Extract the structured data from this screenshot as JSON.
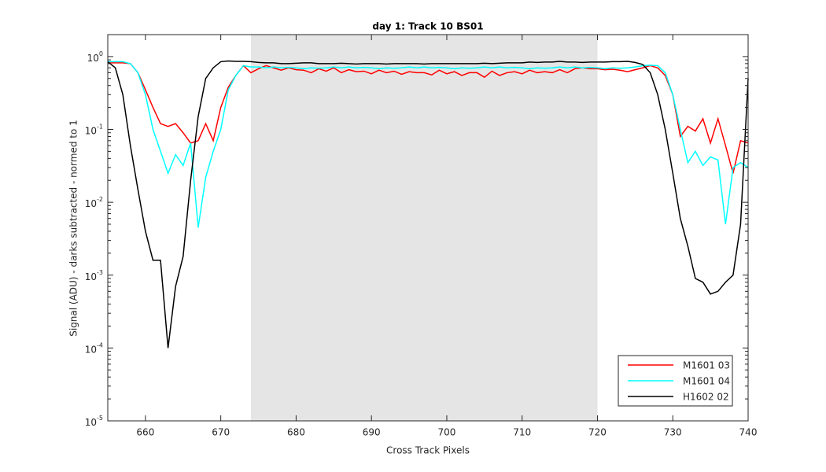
{
  "chart_data": {
    "type": "line",
    "title": "day 1: Track 10  BS01",
    "x_label": "Cross Track Pixels",
    "y_label": "Signal (ADU) - darks subtracted - normed to 1",
    "log_y": true,
    "legend_position": "southeast",
    "shaded_region": [
      674,
      720
    ],
    "shaded_color": "#e5e5e5",
    "x": [
      655,
      656,
      657,
      658,
      659,
      660,
      661,
      662,
      663,
      664,
      665,
      666,
      667,
      668,
      669,
      670,
      671,
      672,
      673,
      674,
      675,
      676,
      677,
      678,
      679,
      680,
      681,
      682,
      683,
      684,
      685,
      686,
      687,
      688,
      689,
      690,
      691,
      692,
      693,
      694,
      695,
      696,
      697,
      698,
      699,
      700,
      701,
      702,
      703,
      704,
      705,
      706,
      707,
      708,
      709,
      710,
      711,
      712,
      713,
      714,
      715,
      716,
      717,
      718,
      719,
      720,
      721,
      722,
      723,
      724,
      725,
      726,
      727,
      728,
      729,
      730,
      731,
      732,
      733,
      734,
      735,
      736,
      737,
      738,
      739,
      740
    ],
    "series": [
      {
        "name": "M1601 03",
        "color": "#ff0000",
        "values": [
          0.82,
          0.82,
          0.82,
          0.8,
          0.6,
          0.35,
          0.2,
          0.12,
          0.11,
          0.12,
          0.09,
          0.065,
          0.07,
          0.12,
          0.07,
          0.2,
          0.38,
          0.55,
          0.75,
          0.6,
          0.68,
          0.75,
          0.7,
          0.65,
          0.7,
          0.66,
          0.65,
          0.6,
          0.68,
          0.63,
          0.7,
          0.6,
          0.66,
          0.62,
          0.63,
          0.58,
          0.65,
          0.6,
          0.63,
          0.57,
          0.62,
          0.6,
          0.6,
          0.56,
          0.65,
          0.58,
          0.62,
          0.55,
          0.6,
          0.6,
          0.52,
          0.63,
          0.55,
          0.6,
          0.62,
          0.58,
          0.65,
          0.6,
          0.62,
          0.6,
          0.66,
          0.6,
          0.68,
          0.7,
          0.68,
          0.68,
          0.66,
          0.67,
          0.65,
          0.62,
          0.66,
          0.7,
          0.75,
          0.7,
          0.55,
          0.3,
          0.08,
          0.11,
          0.095,
          0.14,
          0.065,
          0.14,
          0.06,
          0.025,
          0.07,
          0.065
        ]
      },
      {
        "name": "M1601 04",
        "color": "#00ffff",
        "values": [
          0.85,
          0.85,
          0.85,
          0.8,
          0.6,
          0.3,
          0.1,
          0.05,
          0.025,
          0.045,
          0.032,
          0.065,
          0.0045,
          0.022,
          0.05,
          0.1,
          0.35,
          0.55,
          0.75,
          0.72,
          0.72,
          0.7,
          0.72,
          0.7,
          0.71,
          0.7,
          0.68,
          0.7,
          0.69,
          0.7,
          0.72,
          0.7,
          0.72,
          0.7,
          0.71,
          0.7,
          0.68,
          0.7,
          0.69,
          0.7,
          0.72,
          0.7,
          0.72,
          0.7,
          0.71,
          0.7,
          0.68,
          0.7,
          0.69,
          0.7,
          0.72,
          0.7,
          0.72,
          0.7,
          0.71,
          0.7,
          0.68,
          0.7,
          0.69,
          0.7,
          0.72,
          0.7,
          0.72,
          0.7,
          0.71,
          0.7,
          0.68,
          0.7,
          0.69,
          0.7,
          0.72,
          0.75,
          0.76,
          0.75,
          0.6,
          0.3,
          0.1,
          0.035,
          0.05,
          0.032,
          0.042,
          0.038,
          0.005,
          0.03,
          0.035,
          0.03
        ]
      },
      {
        "name": "H1602 02",
        "color": "#000000",
        "values": [
          0.85,
          0.7,
          0.3,
          0.06,
          0.015,
          0.004,
          0.0016,
          0.0016,
          0.0001,
          0.0007,
          0.0018,
          0.02,
          0.15,
          0.5,
          0.7,
          0.85,
          0.87,
          0.86,
          0.86,
          0.85,
          0.83,
          0.82,
          0.82,
          0.8,
          0.8,
          0.81,
          0.82,
          0.82,
          0.8,
          0.8,
          0.8,
          0.81,
          0.8,
          0.79,
          0.8,
          0.8,
          0.8,
          0.79,
          0.8,
          0.8,
          0.8,
          0.8,
          0.79,
          0.8,
          0.8,
          0.8,
          0.8,
          0.8,
          0.8,
          0.8,
          0.81,
          0.8,
          0.81,
          0.82,
          0.82,
          0.82,
          0.84,
          0.83,
          0.84,
          0.84,
          0.86,
          0.84,
          0.84,
          0.83,
          0.84,
          0.84,
          0.84,
          0.85,
          0.85,
          0.86,
          0.83,
          0.78,
          0.6,
          0.3,
          0.1,
          0.025,
          0.006,
          0.0025,
          0.0009,
          0.0008,
          0.00055,
          0.0006,
          0.0008,
          0.001,
          0.005,
          0.5
        ]
      }
    ],
    "xlim": [
      655,
      740
    ],
    "xticks": [
      660,
      670,
      680,
      690,
      700,
      710,
      720,
      730,
      740
    ],
    "ylim": [
      1e-05,
      2
    ],
    "yticks": [
      {
        "value": 1e-05,
        "label": "10^-5"
      },
      {
        "value": 0.0001,
        "label": "10^-4"
      },
      {
        "value": 0.001,
        "label": "10^-3"
      },
      {
        "value": 0.01,
        "label": "10^-2"
      },
      {
        "value": 0.1,
        "label": "10^-1"
      },
      {
        "value": 1,
        "label": "10^0"
      }
    ]
  }
}
